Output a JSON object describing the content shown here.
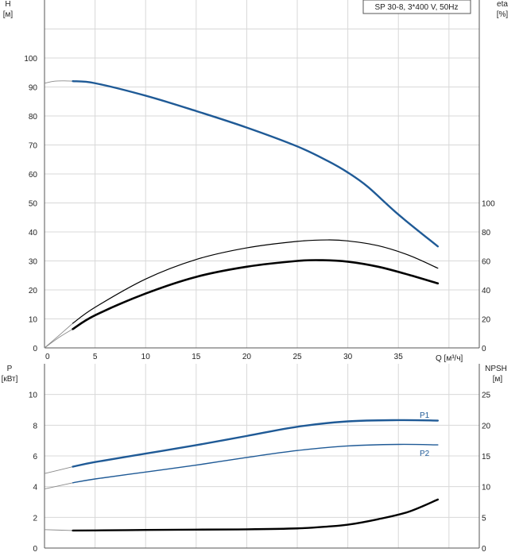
{
  "chart_data": [
    {
      "type": "line",
      "subtitle": "SP 30-8, 3*400 V, 50Hz",
      "xlabel": "Q [м³/ч]",
      "ylabel_left_name": "H",
      "ylabel_left_unit": "[м]",
      "ylabel_right_name": "eta",
      "ylabel_right_unit": "[%]",
      "xlim": [
        0,
        43
      ],
      "ylim_left": [
        0,
        120
      ],
      "ylim_right": [
        0,
        240
      ],
      "xticks": [
        0,
        5,
        10,
        15,
        20,
        25,
        30,
        35
      ],
      "yticks_left": [
        0,
        10,
        20,
        30,
        40,
        50,
        60,
        70,
        80,
        90,
        100
      ],
      "yticks_right": [
        0,
        20,
        40,
        60,
        80,
        100
      ],
      "grid": true,
      "series": [
        {
          "axis": "left",
          "color": "#1f5a96",
          "x": [
            2.8,
            5,
            10,
            15,
            20,
            25,
            28,
            30,
            32,
            35,
            38.9
          ],
          "values": [
            92.0,
            91.3,
            87.0,
            81.7,
            76.0,
            69.5,
            64.5,
            60.5,
            55.5,
            46.0,
            35.0
          ],
          "x_ext": [
            0,
            1,
            2,
            2.8
          ],
          "values_ext": [
            91.3,
            92.0,
            92.1,
            92.0
          ]
        },
        {
          "axis": "right",
          "color": "#000000",
          "width": 2.6,
          "x": [
            2.8,
            5,
            10,
            15,
            20,
            25,
            27.5,
            30,
            33,
            36,
            38.9
          ],
          "values": [
            13.0,
            22.5,
            37.5,
            49.0,
            56.0,
            60.0,
            60.5,
            59.5,
            56.0,
            50.5,
            44.5
          ],
          "x_ext": [
            0,
            1.5,
            2.8
          ],
          "values_ext": [
            0,
            7.5,
            13.0
          ]
        },
        {
          "axis": "right",
          "color": "#000000",
          "width": 1.2,
          "x": [
            2.8,
            5,
            10,
            15,
            20,
            25,
            28,
            30,
            33,
            36,
            38.9
          ],
          "values": [
            17.0,
            28.0,
            47.5,
            61.0,
            69.0,
            73.5,
            74.5,
            73.8,
            70.5,
            64.0,
            55.0
          ],
          "x_ext": [
            0,
            1.5,
            2.8
          ],
          "values_ext": [
            0,
            9.0,
            17.0
          ]
        }
      ]
    },
    {
      "type": "line",
      "ylabel_left_name": "P",
      "ylabel_left_unit": "[кВт]",
      "ylabel_right_name": "NPSH",
      "ylabel_right_unit": "[м]",
      "xlim": [
        0,
        43
      ],
      "ylim_left": [
        0,
        12
      ],
      "ylim_right": [
        0,
        30
      ],
      "yticks_left": [
        0,
        2,
        4,
        6,
        8,
        10
      ],
      "yticks_right": [
        0,
        5,
        10,
        15,
        20,
        25
      ],
      "grid": true,
      "series": [
        {
          "name": "P1",
          "axis": "left",
          "color": "#1f5a96",
          "width": 2.4,
          "x": [
            2.8,
            5,
            10,
            15,
            20,
            25,
            30,
            35,
            38.9
          ],
          "values": [
            5.3,
            5.6,
            6.15,
            6.7,
            7.3,
            7.9,
            8.25,
            8.33,
            8.3
          ],
          "x_ext": [
            0,
            2.8
          ],
          "values_ext": [
            4.85,
            5.3
          ]
        },
        {
          "name": "P2",
          "axis": "left",
          "color": "#1f5a96",
          "width": 1.4,
          "x": [
            2.8,
            5,
            10,
            15,
            20,
            25,
            30,
            35,
            38.9
          ],
          "values": [
            4.25,
            4.5,
            4.95,
            5.4,
            5.9,
            6.35,
            6.65,
            6.75,
            6.72
          ],
          "x_ext": [
            0,
            2.8
          ],
          "values_ext": [
            3.85,
            4.25
          ]
        },
        {
          "axis": "right",
          "color": "#000000",
          "width": 2.4,
          "x": [
            2.8,
            5,
            10,
            15,
            20,
            25,
            28,
            30,
            33,
            36,
            38.9
          ],
          "values": [
            2.85,
            2.87,
            2.95,
            3.0,
            3.05,
            3.2,
            3.5,
            3.8,
            4.7,
            5.9,
            7.9
          ],
          "x_ext": [
            0,
            2.8
          ],
          "values_ext": [
            3.0,
            2.85
          ]
        }
      ]
    }
  ]
}
